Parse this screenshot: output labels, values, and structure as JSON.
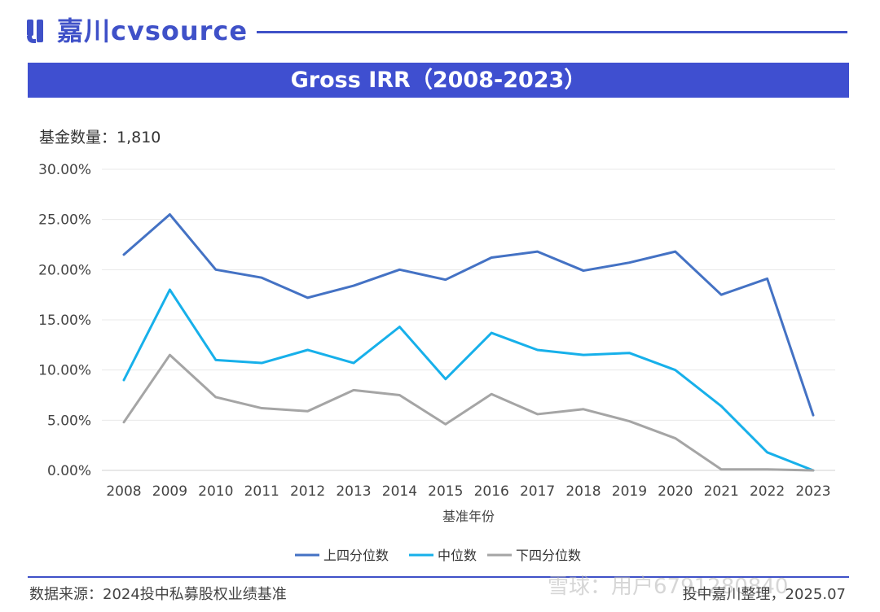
{
  "brand": {
    "logo_text": "嘉川cvsource",
    "accent_color": "#3f51c8",
    "icon": "jiachuan-logo-icon"
  },
  "title": "Gross IRR（2008-2023）",
  "fund_count": "基金数量：1,810",
  "source": "数据来源：2024投中私募股权业绩基准",
  "credit": "投中嘉川整理，2025.07",
  "watermark": "雪球：用户6791280840",
  "chart_data": {
    "type": "line",
    "title": "Gross IRR（2008-2023）",
    "xlabel": "基准年份",
    "ylabel": "",
    "x": [
      "2008",
      "2009",
      "2010",
      "2011",
      "2012",
      "2013",
      "2014",
      "2015",
      "2016",
      "2017",
      "2018",
      "2019",
      "2020",
      "2021",
      "2022",
      "2023"
    ],
    "ylim": [
      0,
      30
    ],
    "yticks": [
      "0.00%",
      "5.00%",
      "10.00%",
      "15.00%",
      "20.00%",
      "25.00%",
      "30.00%"
    ],
    "grid": true,
    "legend_position": "bottom",
    "series": [
      {
        "name": "上四分位数",
        "color": "#4472c4",
        "values": [
          21.5,
          25.5,
          20.0,
          19.2,
          17.2,
          18.4,
          20.0,
          19.0,
          21.2,
          21.8,
          19.9,
          20.7,
          21.8,
          17.5,
          19.1,
          5.5
        ]
      },
      {
        "name": "中位数",
        "color": "#17b0ea",
        "values": [
          9.0,
          18.0,
          11.0,
          10.7,
          12.0,
          10.7,
          14.3,
          9.1,
          13.7,
          12.0,
          11.5,
          11.7,
          10.0,
          6.4,
          1.8,
          0.0
        ]
      },
      {
        "name": "下四分位数",
        "color": "#a5a5a5",
        "values": [
          4.8,
          11.5,
          7.3,
          6.2,
          5.9,
          8.0,
          7.5,
          4.6,
          7.6,
          5.6,
          6.1,
          4.9,
          3.2,
          0.1,
          0.1,
          0.0
        ]
      }
    ]
  }
}
